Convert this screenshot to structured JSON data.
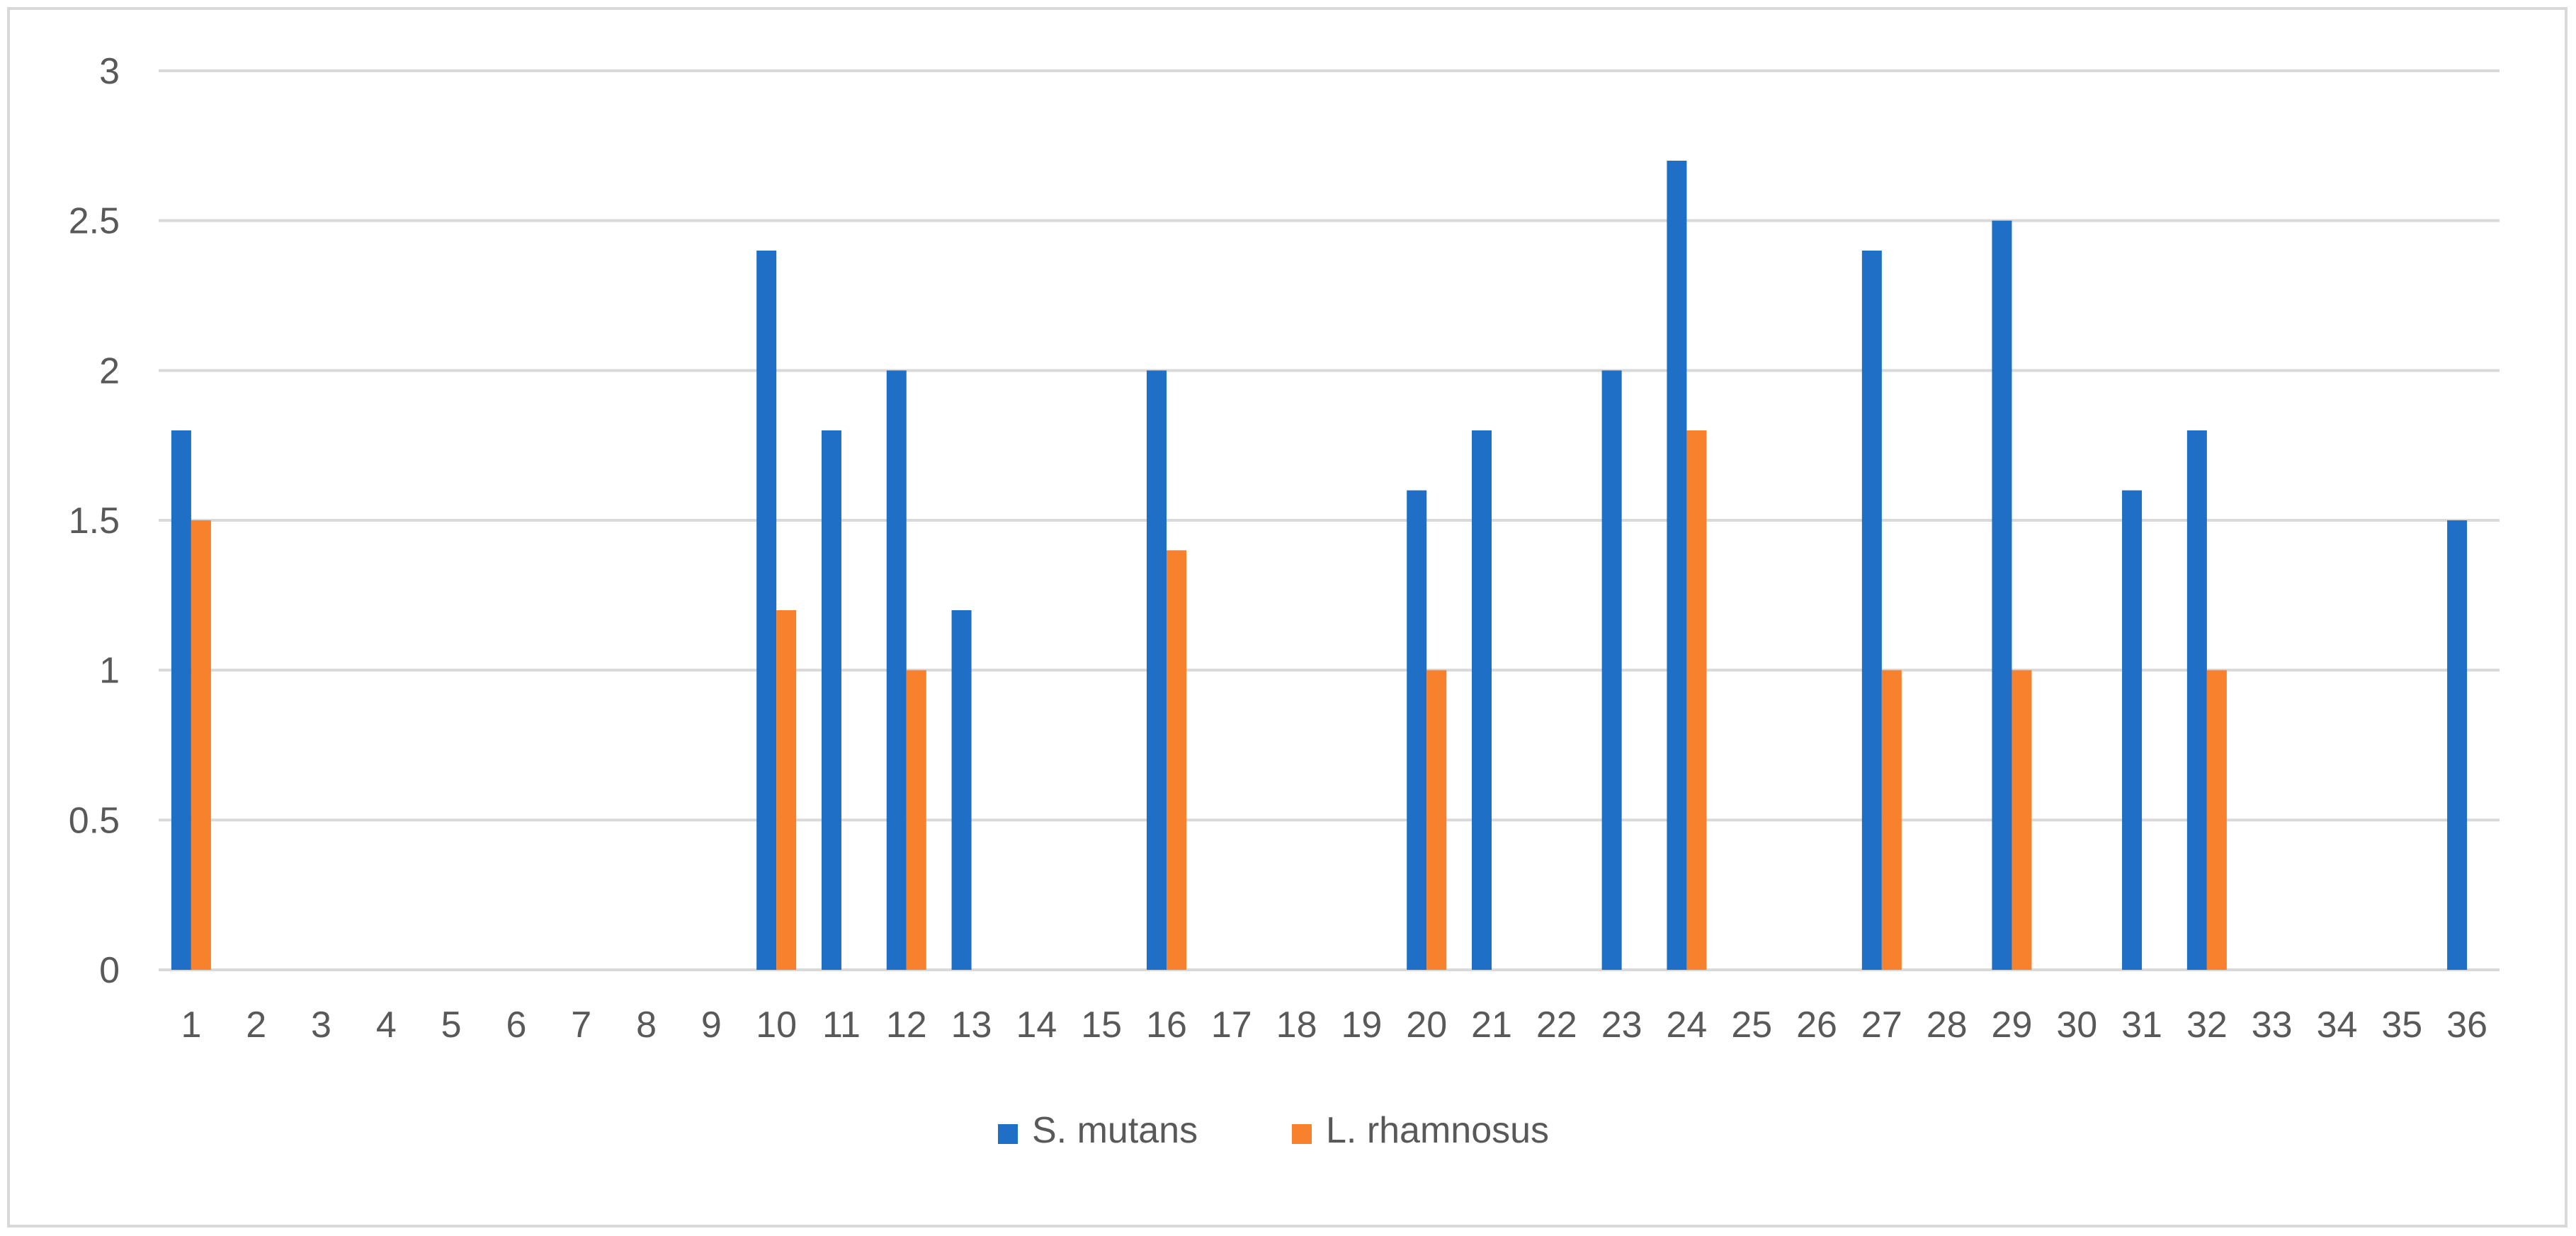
{
  "chart_data": {
    "type": "bar",
    "title": "",
    "xlabel": "",
    "ylabel": "",
    "categories": [
      "1",
      "2",
      "3",
      "4",
      "5",
      "6",
      "7",
      "8",
      "9",
      "10",
      "11",
      "12",
      "13",
      "14",
      "15",
      "16",
      "17",
      "18",
      "19",
      "20",
      "21",
      "22",
      "23",
      "24",
      "25",
      "26",
      "27",
      "28",
      "29",
      "30",
      "31",
      "32",
      "33",
      "34",
      "35",
      "36"
    ],
    "series": [
      {
        "name": "S. mutans",
        "color": "#1f6fc6",
        "values": [
          1.8,
          0,
          0,
          0,
          0,
          0,
          0,
          0,
          0,
          2.4,
          1.8,
          2.0,
          1.2,
          0,
          0,
          2.0,
          0,
          0,
          0,
          1.6,
          1.8,
          0,
          2.0,
          2.7,
          0,
          0,
          2.4,
          0,
          2.5,
          0,
          1.6,
          1.8,
          0,
          0,
          0,
          1.5
        ]
      },
      {
        "name": "L. rhamnosus",
        "color": "#f7812d",
        "values": [
          1.5,
          0,
          0,
          0,
          0,
          0,
          0,
          0,
          0,
          1.2,
          0,
          1.0,
          0,
          0,
          0,
          1.4,
          0,
          0,
          0,
          1.0,
          0,
          0,
          0,
          1.8,
          0,
          0,
          1.0,
          0,
          1.0,
          0,
          0,
          1.0,
          0,
          0,
          0,
          0
        ]
      }
    ],
    "ylim": [
      0,
      3
    ],
    "yticks": [
      "0",
      "0.5",
      "1",
      "1.5",
      "2",
      "2.5",
      "3"
    ],
    "grid": true,
    "legend_position": "bottom"
  }
}
